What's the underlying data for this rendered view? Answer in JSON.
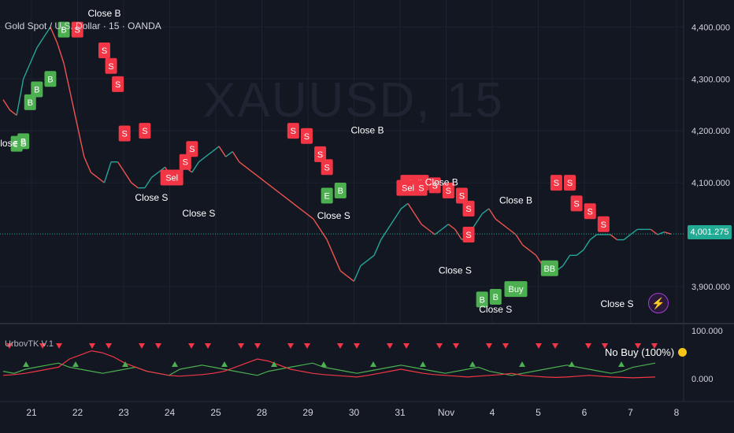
{
  "header": {
    "symbol_title": "Gold Spot / U.S. Dollar · 15 · OANDA",
    "watermark": "XAUUSD, 15",
    "indicator_title": "UrbovTK V.1"
  },
  "status_text": "No Buy (100%)",
  "colors": {
    "bg": "#131722",
    "grid": "#1e2230",
    "up": "#26a69a",
    "down": "#ef5350",
    "sell": "#f23645",
    "buy": "#4caf50",
    "price": "#22ab94",
    "text": "#d1d4dc"
  },
  "icons": [
    "lightning-icon",
    "status-dot-icon"
  ],
  "chart_data": [
    {
      "type": "line",
      "title": "Gold Spot / U.S. Dollar · 15 · OANDA",
      "ylim": [
        3830,
        4440
      ],
      "y_ticks": [
        "4,400.000",
        "4,300.000",
        "4,200.000",
        "4,100.000",
        "3,900.000"
      ],
      "current_price": "4,001.275",
      "x_labels": [
        "21",
        "22",
        "23",
        "24",
        "25",
        "28",
        "29",
        "30",
        "31",
        "Nov",
        "4",
        "5",
        "6",
        "7",
        "8"
      ],
      "series": [
        {
          "values": [
            4260,
            4240,
            4230,
            4300,
            4330,
            4360,
            4380,
            4400,
            4370,
            4330,
            4270,
            4210,
            4150,
            4120,
            4110,
            4100,
            4140,
            4140,
            4120,
            4100,
            4090,
            4090,
            4110,
            4120,
            4130,
            4110,
            4115,
            4130,
            4120,
            4140,
            4150,
            4160,
            4170,
            4150,
            4160,
            4140,
            4130,
            4120,
            4110,
            4100,
            4090,
            4080,
            4070,
            4060,
            4050,
            4040,
            4030,
            4010,
            3990,
            3960,
            3930,
            3920,
            3910,
            3940,
            3950,
            3960,
            3990,
            4010,
            4030,
            4050,
            4060,
            4040,
            4020,
            4010,
            4000,
            4010,
            4020,
            4010,
            3990,
            4000,
            4020,
            4040,
            4050,
            4030,
            4020,
            4010,
            4000,
            3980,
            3970,
            3960,
            3940,
            3930,
            3930,
            3940,
            3960,
            3960,
            3970,
            3990,
            4000,
            4000,
            4000,
            3990,
            3990,
            4000,
            4010,
            4010,
            4010,
            4000,
            4005,
            4001
          ]
        }
      ],
      "signal_labels": [
        {
          "text": "Close B",
          "x": 15,
          "value": 4420,
          "kind": "plain"
        },
        {
          "text": "B",
          "x": 9,
          "value": 4395,
          "kind": "buy"
        },
        {
          "text": "S",
          "x": 11,
          "value": 4395,
          "kind": "sell"
        },
        {
          "text": "S",
          "x": 15,
          "value": 4355,
          "kind": "sell"
        },
        {
          "text": "S",
          "x": 16,
          "value": 4325,
          "kind": "sell"
        },
        {
          "text": "S",
          "x": 17,
          "value": 4290,
          "kind": "sell"
        },
        {
          "text": "S",
          "x": 18,
          "value": 4195,
          "kind": "sell"
        },
        {
          "text": "S",
          "x": 21,
          "value": 4200,
          "kind": "sell"
        },
        {
          "text": "S",
          "x": 27,
          "value": 4140,
          "kind": "sell"
        },
        {
          "text": "Sel",
          "x": 25,
          "value": 4110,
          "kind": "sell"
        },
        {
          "text": "S",
          "x": 28,
          "value": 4165,
          "kind": "sell"
        },
        {
          "text": "Close S",
          "x": 22,
          "value": 4065,
          "kind": "plain"
        },
        {
          "text": "Close S",
          "x": 29,
          "value": 4035,
          "kind": "plain"
        },
        {
          "text": "B",
          "x": 4,
          "value": 4255,
          "kind": "buy"
        },
        {
          "text": "B",
          "x": 5,
          "value": 4280,
          "kind": "buy"
        },
        {
          "text": "B",
          "x": 7,
          "value": 4300,
          "kind": "buy"
        },
        {
          "text": "B",
          "x": 2,
          "value": 4175,
          "kind": "buy"
        },
        {
          "text": "B",
          "x": 3,
          "value": 4180,
          "kind": "buy"
        },
        {
          "text": "Close S",
          "x": 1,
          "value": 4170,
          "kind": "plain"
        },
        {
          "text": "S",
          "x": 43,
          "value": 4200,
          "kind": "sell"
        },
        {
          "text": "S",
          "x": 45,
          "value": 4190,
          "kind": "sell"
        },
        {
          "text": "S",
          "x": 47,
          "value": 4155,
          "kind": "sell"
        },
        {
          "text": "S",
          "x": 48,
          "value": 4130,
          "kind": "sell"
        },
        {
          "text": "Close B",
          "x": 54,
          "value": 4195,
          "kind": "plain"
        },
        {
          "text": "E",
          "x": 48,
          "value": 4075,
          "kind": "buy"
        },
        {
          "text": "B",
          "x": 50,
          "value": 4085,
          "kind": "buy"
        },
        {
          "text": "Close S",
          "x": 49,
          "value": 4030,
          "kind": "plain"
        },
        {
          "text": "Sell",
          "x": 61,
          "value": 4100,
          "kind": "sell"
        },
        {
          "text": "S",
          "x": 64,
          "value": 4095,
          "kind": "sell"
        },
        {
          "text": "S",
          "x": 66,
          "value": 4085,
          "kind": "sell"
        },
        {
          "text": "S",
          "x": 68,
          "value": 4075,
          "kind": "sell"
        },
        {
          "text": "S",
          "x": 69,
          "value": 4050,
          "kind": "sell"
        },
        {
          "text": "S",
          "x": 69,
          "value": 4000,
          "kind": "sell"
        },
        {
          "text": "Close S",
          "x": 67,
          "value": 3925,
          "kind": "plain"
        },
        {
          "text": "B",
          "x": 71,
          "value": 3875,
          "kind": "buy"
        },
        {
          "text": "B",
          "x": 73,
          "value": 3880,
          "kind": "buy"
        },
        {
          "text": "Buy",
          "x": 76,
          "value": 3895,
          "kind": "buy"
        },
        {
          "text": "BB",
          "x": 81,
          "value": 3935,
          "kind": "buy"
        },
        {
          "text": "Close S",
          "x": 73,
          "value": 3850,
          "kind": "plain"
        },
        {
          "text": "Close B",
          "x": 76,
          "value": 4060,
          "kind": "plain"
        },
        {
          "text": "S",
          "x": 82,
          "value": 4100,
          "kind": "sell"
        },
        {
          "text": "S",
          "x": 84,
          "value": 4100,
          "kind": "sell"
        },
        {
          "text": "S",
          "x": 85,
          "value": 4060,
          "kind": "sell"
        },
        {
          "text": "S",
          "x": 87,
          "value": 4045,
          "kind": "sell"
        },
        {
          "text": "S",
          "x": 89,
          "value": 4020,
          "kind": "sell"
        },
        {
          "text": "Close S",
          "x": 91,
          "value": 3860,
          "kind": "plain"
        },
        {
          "text": "Sel",
          "x": 60,
          "value": 4090,
          "kind": "sell"
        },
        {
          "text": "S",
          "x": 62,
          "value": 4090,
          "kind": "sell"
        },
        {
          "text": "Close B",
          "x": 65,
          "value": 4095,
          "kind": "plain"
        }
      ]
    },
    {
      "type": "line",
      "title": "UrbovTK V.1",
      "ylim": [
        0,
        100
      ],
      "y_ticks": [
        "100.000",
        "0.000"
      ],
      "series": [
        {
          "color": "#4caf50",
          "values": [
            20,
            15,
            25,
            30,
            35,
            40,
            30,
            25,
            20,
            15,
            20,
            25,
            30,
            20,
            15,
            10,
            25,
            30,
            35,
            30,
            25,
            20,
            15,
            10,
            20,
            25,
            30,
            35,
            40,
            30,
            25,
            20,
            15,
            20,
            25,
            30,
            35,
            30,
            25,
            20,
            15,
            20,
            25,
            30,
            20,
            15,
            10,
            15,
            20,
            25,
            30,
            35,
            30,
            25,
            20,
            15,
            20,
            30,
            35,
            40
          ]
        },
        {
          "color": "#f23645",
          "values": [
            10,
            12,
            15,
            20,
            25,
            30,
            50,
            60,
            70,
            65,
            55,
            40,
            30,
            20,
            15,
            10,
            8,
            10,
            12,
            15,
            20,
            30,
            40,
            50,
            45,
            35,
            25,
            20,
            15,
            12,
            10,
            8,
            6,
            10,
            15,
            20,
            25,
            20,
            15,
            12,
            10,
            8,
            6,
            8,
            10,
            12,
            15,
            10,
            8,
            6,
            5,
            6,
            8,
            10,
            8,
            6,
            5,
            4,
            5,
            6
          ]
        }
      ]
    }
  ]
}
